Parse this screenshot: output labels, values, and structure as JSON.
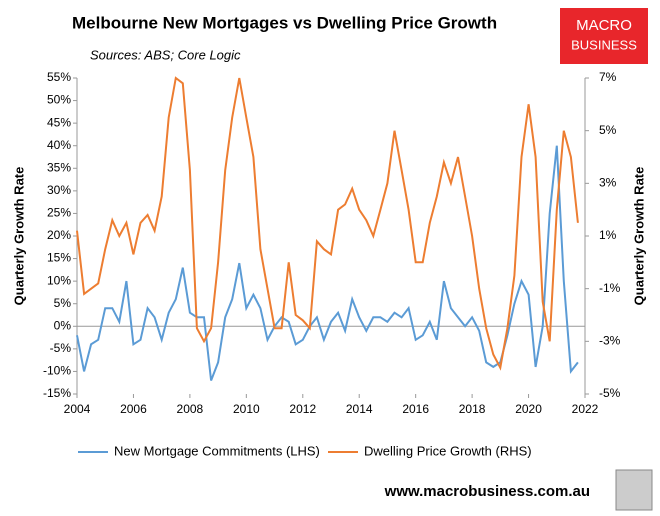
{
  "chart_data": {
    "type": "line",
    "title": "Melbourne New Mortgages vs Dwelling Price Growth",
    "subtitle": "Sources: ABS; Core Logic",
    "logo": [
      "MACRO",
      "BUSINESS"
    ],
    "footer": "www.macrobusiness.com.au",
    "ylabel": "Quarterly Growth Rate",
    "y2label": "Quarterly Growth Rate",
    "x": [
      2004,
      2004.25,
      2004.5,
      2004.75,
      2005,
      2005.25,
      2005.5,
      2005.75,
      2006,
      2006.25,
      2006.5,
      2006.75,
      2007,
      2007.25,
      2007.5,
      2007.75,
      2008,
      2008.25,
      2008.5,
      2008.75,
      2009,
      2009.25,
      2009.5,
      2009.75,
      2010,
      2010.25,
      2010.5,
      2010.75,
      2011,
      2011.25,
      2011.5,
      2011.75,
      2012,
      2012.25,
      2012.5,
      2012.75,
      2013,
      2013.25,
      2013.5,
      2013.75,
      2014,
      2014.25,
      2014.5,
      2014.75,
      2015,
      2015.25,
      2015.5,
      2015.75,
      2016,
      2016.25,
      2016.5,
      2016.75,
      2017,
      2017.25,
      2017.5,
      2017.75,
      2018,
      2018.25,
      2018.5,
      2018.75,
      2019,
      2019.25,
      2019.5,
      2019.75,
      2020,
      2020.25,
      2020.5,
      2020.75,
      2021,
      2021.25,
      2021.5,
      2021.75
    ],
    "series": [
      {
        "name": "New Mortgage Commitments (LHS)",
        "color": "#5b9bd5",
        "axis": "y",
        "values": [
          -2,
          -10,
          -4,
          -3,
          4,
          4,
          1,
          10,
          -4,
          -3,
          4,
          2,
          -3,
          3,
          6,
          13,
          3,
          2,
          2,
          -12,
          -8,
          2,
          6,
          14,
          4,
          7,
          4,
          -3,
          0,
          2,
          1,
          -4,
          -3,
          0,
          2,
          -3,
          1,
          3,
          -1,
          6,
          2,
          -1,
          2,
          2,
          1,
          3,
          2,
          4,
          -3,
          -2,
          1,
          -3,
          10,
          4,
          2,
          0,
          2,
          -1,
          -8,
          -9,
          -8,
          -2,
          5,
          10,
          7,
          -9,
          0,
          25,
          40,
          10,
          -10,
          -8
        ]
      },
      {
        "name": "Dwelling Price Growth (RHS)",
        "color": "#ed7d31",
        "axis": "y2",
        "values": [
          1.2,
          -1.2,
          -1,
          -0.8,
          0.5,
          1.6,
          1,
          1.5,
          0.3,
          1.5,
          1.8,
          1.2,
          2.5,
          5.5,
          7,
          6.8,
          3.5,
          -2.5,
          -3,
          -2.5,
          0,
          3.5,
          5.5,
          7,
          5.5,
          4,
          0.5,
          -1,
          -2.5,
          -2.5,
          0,
          -2,
          -2.2,
          -2.5,
          0.8,
          0.5,
          0.3,
          2,
          2.2,
          2.8,
          2,
          1.6,
          1,
          2,
          3,
          5,
          3.5,
          2,
          0,
          0,
          1.5,
          2.5,
          3.8,
          3,
          4,
          2.5,
          1,
          -1,
          -2.5,
          -3.5,
          -4,
          -2.5,
          -0.5,
          4,
          6,
          4,
          -1.5,
          -3,
          2,
          5,
          4,
          1.5
        ]
      }
    ],
    "xlim": [
      2004,
      2022
    ],
    "xticks": [
      2004,
      2006,
      2008,
      2010,
      2012,
      2014,
      2016,
      2018,
      2020,
      2022
    ],
    "ylim": [
      -15,
      55
    ],
    "yticks": [
      {
        "value": -15,
        "label": "-15%"
      },
      {
        "value": -10,
        "label": "-10%"
      },
      {
        "value": -5,
        "label": "-5%"
      },
      {
        "value": 0,
        "label": "0%"
      },
      {
        "value": 5,
        "label": "5%"
      },
      {
        "value": 10,
        "label": "10%"
      },
      {
        "value": 15,
        "label": "15%"
      },
      {
        "value": 20,
        "label": "20%"
      },
      {
        "value": 25,
        "label": "25%"
      },
      {
        "value": 30,
        "label": "30%"
      },
      {
        "value": 35,
        "label": "35%"
      },
      {
        "value": 40,
        "label": "40%"
      },
      {
        "value": 45,
        "label": "45%"
      },
      {
        "value": 50,
        "label": "50%"
      },
      {
        "value": 55,
        "label": "55%"
      }
    ],
    "y2lim": [
      -5,
      7
    ],
    "y2ticks": [
      {
        "value": -5,
        "label": "-5%"
      },
      {
        "value": -3,
        "label": "-3%"
      },
      {
        "value": -1,
        "label": "-1%"
      },
      {
        "value": 1,
        "label": "1%"
      },
      {
        "value": 3,
        "label": "3%"
      },
      {
        "value": 5,
        "label": "5%"
      },
      {
        "value": 7,
        "label": "7%"
      }
    ],
    "legend": "bottom",
    "grid": false
  }
}
